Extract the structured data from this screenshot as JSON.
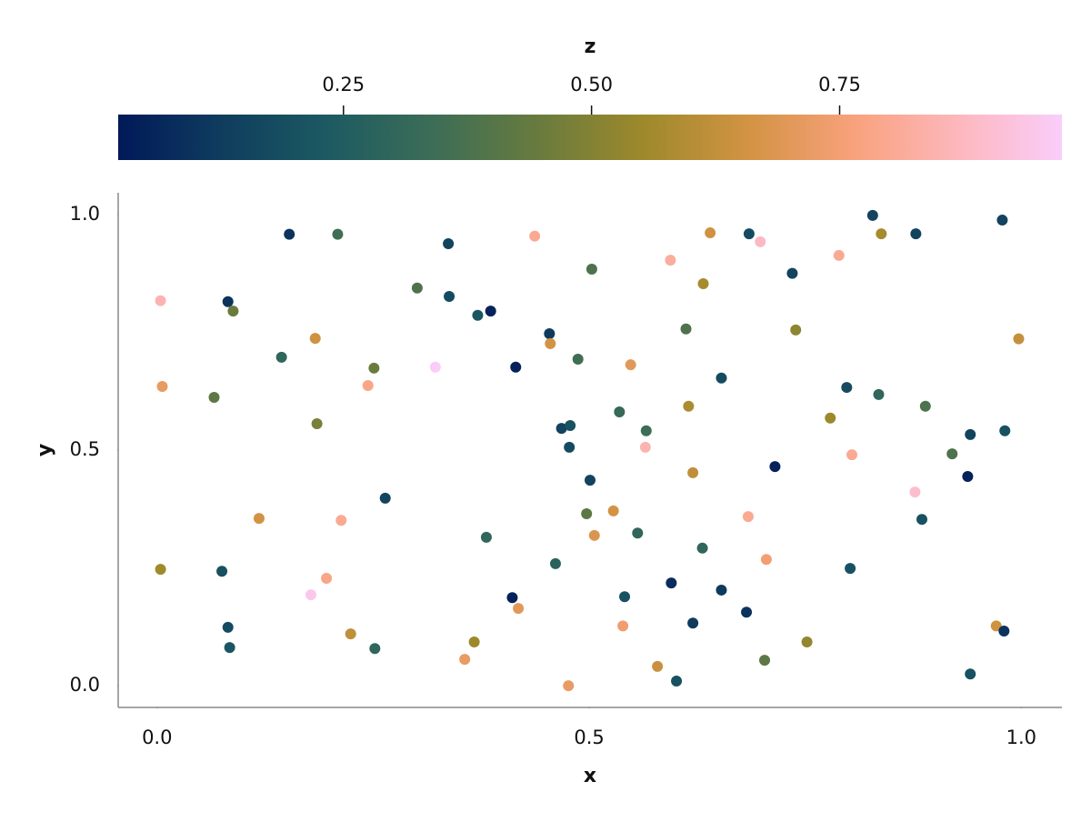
{
  "chart_data": {
    "type": "scatter",
    "x_label": "x",
    "y_label": "y",
    "colorbar_label": "z",
    "xlim": [
      -0.045,
      1.047
    ],
    "ylim": [
      -0.046,
      1.046
    ],
    "zlim": [
      0.023,
      0.974
    ],
    "xticks": [
      {
        "value": 0,
        "label": "0.0"
      },
      0.5,
      {
        "value": 1,
        "label": "1.0"
      }
    ],
    "yticks": [
      {
        "value": 0,
        "label": "0.0"
      },
      0.5,
      {
        "value": 1,
        "label": "1.0"
      }
    ],
    "zticks": [
      0.25,
      {
        "value": 0.5,
        "label": "0.50"
      },
      0.75
    ],
    "colormap": [
      "#011959",
      "#0f3d5e",
      "#1c5a62",
      "#3c6d56",
      "#687b3e",
      "#9d892b",
      "#d29343",
      "#f8a17b",
      "#fdb7bc",
      "#facdfa"
    ],
    "x": [
      0.004,
      0.006,
      0.004,
      0.082,
      0.088,
      0.066,
      0.075,
      0.082,
      0.084,
      0.153,
      0.209,
      0.144,
      0.183,
      0.185,
      0.118,
      0.213,
      0.196,
      0.178,
      0.224,
      0.252,
      0.244,
      0.251,
      0.264,
      0.301,
      0.337,
      0.338,
      0.371,
      0.386,
      0.322,
      0.381,
      0.356,
      0.367,
      0.411,
      0.418,
      0.437,
      0.415,
      0.454,
      0.455,
      0.487,
      0.503,
      0.468,
      0.478,
      0.477,
      0.501,
      0.497,
      0.506,
      0.461,
      0.476,
      0.535,
      0.548,
      0.528,
      0.566,
      0.565,
      0.556,
      0.541,
      0.539,
      0.579,
      0.601,
      0.594,
      0.612,
      0.615,
      0.632,
      0.62,
      0.631,
      0.595,
      0.62,
      0.64,
      0.653,
      0.653,
      0.685,
      0.698,
      0.684,
      0.682,
      0.705,
      0.703,
      0.715,
      0.735,
      0.739,
      0.752,
      0.779,
      0.789,
      0.798,
      0.804,
      0.802,
      0.828,
      0.838,
      0.835,
      0.878,
      0.877,
      0.885,
      0.889,
      0.92,
      0.938,
      0.941,
      0.941,
      0.978,
      0.981,
      0.971,
      0.98,
      0.997
    ],
    "y": [
      0.817,
      0.635,
      0.247,
      0.815,
      0.795,
      0.612,
      0.243,
      0.124,
      0.081,
      0.958,
      0.958,
      0.697,
      0.737,
      0.556,
      0.355,
      0.351,
      0.228,
      0.193,
      0.11,
      0.079,
      0.637,
      0.674,
      0.398,
      0.844,
      0.938,
      0.826,
      0.786,
      0.795,
      0.676,
      0.315,
      0.056,
      0.093,
      0.187,
      0.164,
      0.954,
      0.676,
      0.747,
      0.726,
      0.693,
      0.884,
      0.546,
      0.552,
      0.506,
      0.436,
      0.365,
      0.319,
      0.259,
      0.0,
      0.581,
      0.681,
      0.371,
      0.541,
      0.506,
      0.324,
      0.189,
      0.127,
      0.041,
      0.01,
      0.903,
      0.757,
      0.593,
      0.853,
      0.452,
      0.292,
      0.218,
      0.133,
      0.961,
      0.653,
      0.203,
      0.959,
      0.942,
      0.359,
      0.156,
      0.268,
      0.054,
      0.465,
      0.875,
      0.755,
      0.093,
      0.568,
      0.913,
      0.633,
      0.49,
      0.249,
      0.998,
      0.959,
      0.618,
      0.959,
      0.411,
      0.353,
      0.593,
      0.492,
      0.444,
      0.533,
      0.025,
      0.988,
      0.541,
      0.127,
      0.116,
      0.736
    ],
    "z": [
      0.85,
      0.72,
      0.56,
      0.1,
      0.45,
      0.42,
      0.2,
      0.18,
      0.22,
      0.1,
      0.35,
      0.3,
      0.65,
      0.48,
      0.66,
      0.8,
      0.78,
      0.95,
      0.62,
      0.3,
      0.78,
      0.45,
      0.15,
      0.38,
      0.15,
      0.18,
      0.22,
      0.05,
      0.97,
      0.3,
      0.72,
      0.55,
      0.05,
      0.7,
      0.8,
      0.05,
      0.12,
      0.66,
      0.35,
      0.38,
      0.15,
      0.2,
      0.18,
      0.15,
      0.42,
      0.68,
      0.28,
      0.72,
      0.32,
      0.7,
      0.66,
      0.34,
      0.85,
      0.3,
      0.2,
      0.74,
      0.64,
      0.2,
      0.82,
      0.38,
      0.58,
      0.57,
      0.62,
      0.3,
      0.08,
      0.12,
      0.65,
      0.18,
      0.12,
      0.18,
      0.88,
      0.8,
      0.1,
      0.75,
      0.42,
      0.05,
      0.15,
      0.52,
      0.53,
      0.55,
      0.8,
      0.18,
      0.8,
      0.2,
      0.15,
      0.57,
      0.3,
      0.15,
      0.9,
      0.2,
      0.38,
      0.38,
      0.05,
      0.15,
      0.2,
      0.15,
      0.2,
      0.65,
      0.1,
      0.63
    ]
  }
}
